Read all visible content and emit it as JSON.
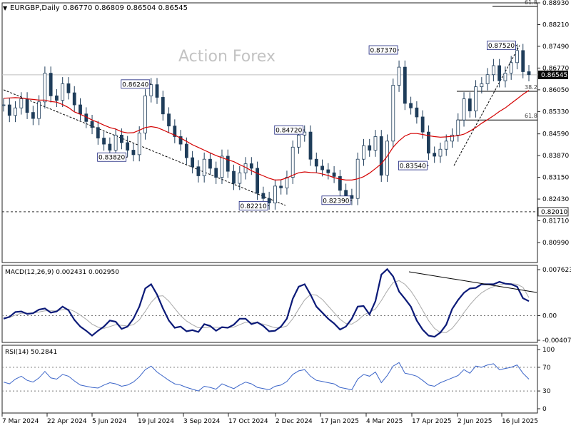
{
  "window_title": "EURGBP,Daily",
  "ohlc_text": "0.86770 0.86809 0.86504 0.86545",
  "watermark": "Action Forex",
  "colors": {
    "price": "#1f3d5a",
    "ma": "#d40000",
    "macd": "#0b1a78",
    "signal": "#a9a9a9",
    "rsi": "#3a64c8",
    "current_price_box": "#0a0a0a",
    "grid": "#777777"
  },
  "chart_data": [
    {
      "type": "line",
      "panel": "price",
      "ylim": [
        0.8099,
        0.8893
      ],
      "y_ticks": [
        "0.88930",
        "0.88210",
        "0.87490",
        "0.86770",
        "0.86050",
        "0.85330",
        "0.84590",
        "0.83870",
        "0.83150",
        "0.82430",
        "0.81710",
        "0.80990"
      ],
      "x_ticks": [
        "7 Mar 2024",
        "22 Apr 2024",
        "5 Jun 2024",
        "19 Jul 2024",
        "3 Sep 2024",
        "17 Oct 2024",
        "2 Dec 2024",
        "17 Jan 2025",
        "4 Mar 2025",
        "17 Apr 2025",
        "2 Jun 2025",
        "16 Jul 2025"
      ],
      "current_price": "0.86545",
      "support_level": "0.82010",
      "swing_labels": [
        "0.86240",
        "0.83820",
        "0.84720",
        "0.82210",
        "0.82390",
        "0.87370",
        "0.83540",
        "0.87520"
      ],
      "fib_labels": [
        "61.8",
        "38.2",
        "61.8"
      ],
      "series": [
        {
          "values": [
            0.8555,
            0.852,
            0.8545,
            0.8575,
            0.853,
            0.851,
            0.8565,
            0.866,
            0.8585,
            0.857,
            0.8625,
            0.8595,
            0.8555,
            0.8525,
            0.85,
            0.848,
            0.8445,
            0.8425,
            0.8405,
            0.8455,
            0.843,
            0.8405,
            0.839,
            0.8462,
            0.8585,
            0.8622,
            0.858,
            0.8525,
            0.8485,
            0.845,
            0.8425,
            0.838,
            0.835,
            0.832,
            0.8375,
            0.8345,
            0.8315,
            0.8385,
            0.8335,
            0.8295,
            0.833,
            0.836,
            0.8345,
            0.8262,
            0.8245,
            0.823,
            0.8286,
            0.828,
            0.8315,
            0.8415,
            0.8455,
            0.8465,
            0.8375,
            0.8352,
            0.834,
            0.833,
            0.8318,
            0.8272,
            0.8255,
            0.8245,
            0.8375,
            0.842,
            0.8405,
            0.845,
            0.8322,
            0.8435,
            0.862,
            0.868,
            0.856,
            0.8545,
            0.8515,
            0.8465,
            0.8395,
            0.8385,
            0.8408,
            0.8435,
            0.8455,
            0.8505,
            0.8575,
            0.8535,
            0.8615,
            0.8625,
            0.8655,
            0.8685,
            0.8635,
            0.866,
            0.8695,
            0.8735,
            0.8665,
            0.8655
          ]
        },
        {
          "name": "",
          "values": [
            0.8577,
            0.8578,
            0.8579,
            0.8578,
            0.8575,
            0.8573,
            0.8571,
            0.8571,
            0.8566,
            0.8564,
            0.8556,
            0.8546,
            0.8532,
            0.8524,
            0.8515,
            0.8505,
            0.8497,
            0.8488,
            0.848,
            0.8475,
            0.8466,
            0.8462,
            0.8463,
            0.8471,
            0.848,
            0.8483,
            0.848,
            0.8472,
            0.8463,
            0.8455,
            0.8445,
            0.8434,
            0.8423,
            0.8414,
            0.8405,
            0.8396,
            0.8387,
            0.838,
            0.8373,
            0.8367,
            0.8357,
            0.8348,
            0.8337,
            0.8328,
            0.832,
            0.8312,
            0.8306,
            0.8307,
            0.8313,
            0.8322,
            0.833,
            0.8333,
            0.8331,
            0.833,
            0.8326,
            0.8321,
            0.8314,
            0.8309,
            0.8306,
            0.8306,
            0.831,
            0.8317,
            0.8329,
            0.8344,
            0.836,
            0.8385,
            0.8415,
            0.8436,
            0.8452,
            0.846,
            0.846,
            0.8457,
            0.8453,
            0.845,
            0.8448,
            0.8449,
            0.8451,
            0.8453,
            0.8458,
            0.8468,
            0.848,
            0.8494,
            0.8506,
            0.8519,
            0.8533,
            0.8545,
            0.856,
            0.8575,
            0.859,
            0.8603
          ]
        }
      ],
      "type_detail": "candlestick"
    },
    {
      "type": "line",
      "panel": "macd",
      "title": "MACD(12,26,9) 0.002431 0.002950",
      "ylim": [
        -0.004073,
        0.007623
      ],
      "y_ticks": [
        "0.007623",
        "0.00",
        "-0.004073"
      ],
      "series": [
        {
          "values": [
            -0.0005,
            -0.0002,
            0.0006,
            0.0007,
            0.0003,
            0.0004,
            0.001,
            0.0012,
            0.0005,
            0.0007,
            0.0015,
            0.0009,
            -0.0007,
            -0.0018,
            -0.0025,
            -0.0033,
            -0.0025,
            -0.0018,
            -0.0008,
            -0.001,
            -0.0022,
            -0.0018,
            -0.0005,
            0.0015,
            0.0045,
            0.0052,
            0.0035,
            0.0012,
            -0.0008,
            -0.002,
            -0.0018,
            -0.0026,
            -0.0024,
            -0.0027,
            -0.0014,
            -0.0017,
            -0.0025,
            -0.0019,
            -0.002,
            -0.0015,
            -0.0005,
            -0.0005,
            -0.0014,
            -0.0011,
            -0.0017,
            -0.0026,
            -0.0025,
            -0.0018,
            -0.0005,
            0.0028,
            0.0048,
            0.0052,
            0.0035,
            0.0015,
            0.0005,
            -0.0005,
            -0.0013,
            -0.0023,
            -0.0018,
            -0.0005,
            0.0015,
            0.0016,
            0.0002,
            0.0024,
            0.0068,
            0.0077,
            0.0065,
            0.004,
            0.0028,
            0.0015,
            -0.0008,
            -0.0023,
            -0.0033,
            -0.0035,
            -0.0028,
            -0.0015,
            0.0011,
            0.0026,
            0.0038,
            0.0045,
            0.0046,
            0.0052,
            0.0052,
            0.0052,
            0.0056,
            0.0053,
            0.0052,
            0.0048,
            0.0029,
            0.0024
          ]
        },
        {
          "values": [
            -0.0003,
            -0.0003,
            0.0001,
            0.0004,
            0.0004,
            0.0004,
            0.0006,
            0.0008,
            0.0008,
            0.0008,
            0.001,
            0.0011,
            0.0007,
            0.0001,
            -0.0006,
            -0.0014,
            -0.0019,
            -0.0021,
            -0.0018,
            -0.0015,
            -0.0016,
            -0.0017,
            -0.0015,
            -0.0007,
            0.0007,
            0.0022,
            0.0032,
            0.0033,
            0.0024,
            0.0012,
            0.0,
            -0.0009,
            -0.0015,
            -0.002,
            -0.002,
            -0.0019,
            -0.0019,
            -0.002,
            -0.002,
            -0.0019,
            -0.0015,
            -0.0011,
            -0.0011,
            -0.0012,
            -0.0014,
            -0.0017,
            -0.002,
            -0.002,
            -0.0017,
            -0.0005,
            0.0011,
            0.0026,
            0.0035,
            0.0034,
            0.0027,
            0.0016,
            0.0005,
            -0.0006,
            -0.0013,
            -0.0014,
            -0.0008,
            0.0001,
            0.0006,
            0.0011,
            0.0025,
            0.0041,
            0.0055,
            0.0058,
            0.0052,
            0.0041,
            0.0026,
            0.0009,
            -0.0008,
            -0.0021,
            -0.0028,
            -0.0028,
            -0.0021,
            -0.0009,
            0.0005,
            0.0018,
            0.0029,
            0.0038,
            0.0044,
            0.0048,
            0.0051,
            0.0053,
            0.0053,
            0.0052,
            0.0047,
            0.003
          ]
        }
      ]
    },
    {
      "type": "line",
      "panel": "rsi",
      "title": "RSI(14) 50.2841",
      "ylim": [
        0,
        100
      ],
      "y_ticks": [
        "100",
        "70",
        "30",
        "0"
      ],
      "levels": [
        70,
        30
      ],
      "series": [
        {
          "values": [
            45,
            42,
            50,
            55,
            48,
            45,
            52,
            63,
            52,
            50,
            58,
            55,
            47,
            40,
            38,
            36,
            35,
            40,
            44,
            42,
            38,
            40,
            45,
            54,
            66,
            72,
            62,
            55,
            48,
            42,
            40,
            36,
            33,
            30,
            38,
            36,
            33,
            42,
            38,
            34,
            40,
            45,
            42,
            36,
            34,
            32,
            38,
            40,
            46,
            58,
            64,
            66,
            55,
            48,
            46,
            44,
            42,
            36,
            34,
            32,
            50,
            58,
            55,
            62,
            44,
            56,
            72,
            78,
            60,
            58,
            55,
            48,
            40,
            38,
            44,
            48,
            52,
            56,
            66,
            60,
            72,
            70,
            74,
            76,
            66,
            68,
            70,
            74,
            60,
            50
          ]
        }
      ]
    }
  ]
}
